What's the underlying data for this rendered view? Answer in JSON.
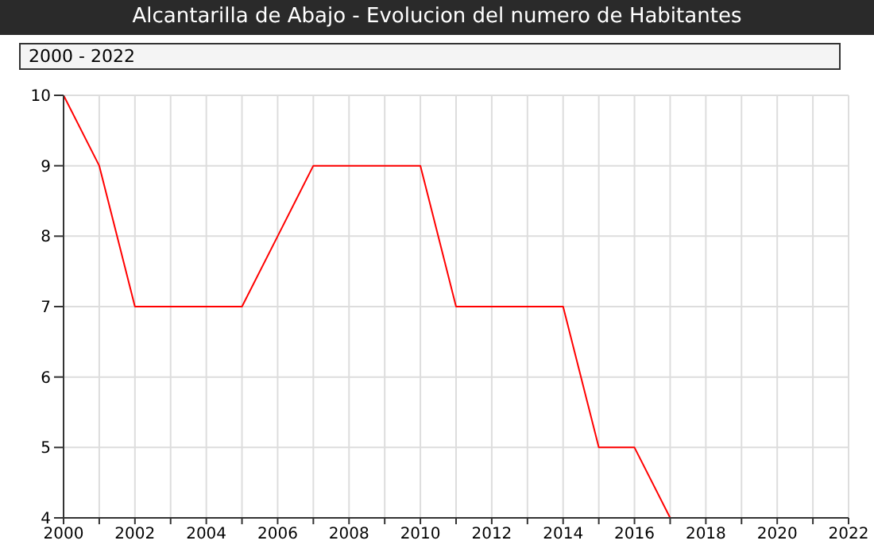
{
  "chart_data": {
    "type": "line",
    "title": "Alcantarilla de Abajo - Evolucion del numero de Habitantes",
    "subtitle": "2000 - 2022",
    "x": [
      2000,
      2001,
      2002,
      2003,
      2004,
      2005,
      2006,
      2007,
      2008,
      2009,
      2010,
      2011,
      2012,
      2013,
      2014,
      2015,
      2016,
      2017
    ],
    "values": [
      10,
      9,
      7,
      7,
      7,
      7,
      8,
      9,
      9,
      9,
      9,
      7,
      7,
      7,
      7,
      5,
      5,
      4
    ],
    "color": "#ff0000",
    "xlim": [
      2000,
      2022
    ],
    "ylim": [
      4,
      10
    ],
    "xticks": [
      2000,
      {
        "value": 2001,
        "label": null
      },
      2002,
      {
        "value": 2003,
        "label": null
      },
      2004,
      {
        "value": 2005,
        "label": null
      },
      2006,
      {
        "value": 2007,
        "label": null
      },
      2008,
      {
        "value": 2009,
        "label": null
      },
      2010,
      {
        "value": 2011,
        "label": null
      },
      2012,
      {
        "value": 2013,
        "label": null
      },
      2014,
      {
        "value": 2015,
        "label": null
      },
      2016,
      {
        "value": 2017,
        "label": null
      },
      2018,
      {
        "value": 2019,
        "label": null
      },
      2020,
      {
        "value": 2021,
        "label": null
      },
      2022
    ],
    "yticks": [
      4,
      5,
      6,
      7,
      8,
      9,
      10
    ],
    "grid": true
  }
}
